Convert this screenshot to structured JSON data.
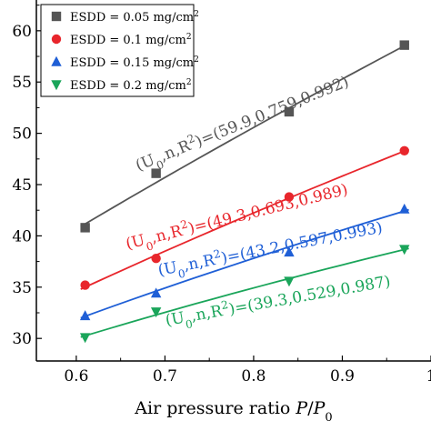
{
  "chart_data": {
    "type": "scatter",
    "title": "",
    "xlabel": "Air pressure ratio P/P0",
    "xlabel_parts": {
      "prefix": "Air pressure ratio ",
      "var1": "P",
      "slash": "/",
      "var2": "P",
      "sub": "0"
    },
    "ylabel": "",
    "xlim": [
      0.555,
      1.0
    ],
    "ylim": [
      27.8,
      63.0
    ],
    "x_ticks": [
      0.6,
      0.7,
      0.8,
      0.9,
      1.0
    ],
    "x_tick_labels": [
      "0.6",
      "0.7",
      "0.8",
      "0.9",
      "1"
    ],
    "y_ticks": [
      30,
      35,
      40,
      45,
      50,
      55,
      60
    ],
    "y_tick_labels": [
      "30",
      "35",
      "40",
      "45",
      "50",
      "55",
      "60"
    ],
    "grid": false,
    "legend_position": "top-left",
    "series": [
      {
        "legend": "ESDD = 0.05 mg/cm²",
        "legend_parts": {
          "text": "ESDD = 0.05 mg/cm",
          "sup": "2"
        },
        "marker": "square",
        "color": "#555555",
        "x": [
          0.61,
          0.69,
          0.84,
          0.97
        ],
        "y": [
          40.8,
          46.1,
          52.1,
          58.6
        ],
        "fit": {
          "U0": 59.9,
          "n": 0.759,
          "R2": 0.992
        },
        "annotation": {
          "prefix": "(U",
          "sub": "0",
          "mid": ",n,R",
          "sup": "2",
          "suffix": ")=(59.9,0.759,0.992)"
        }
      },
      {
        "legend": "ESDD = 0.1 mg/cm²",
        "legend_parts": {
          "text": "ESDD = 0.1 mg/cm",
          "sup": "2"
        },
        "marker": "circle",
        "color": "#e8262c",
        "x": [
          0.61,
          0.69,
          0.84,
          0.97
        ],
        "y": [
          35.2,
          37.8,
          43.8,
          48.3
        ],
        "fit": {
          "U0": 49.3,
          "n": 0.693,
          "R2": 0.989
        },
        "annotation": {
          "prefix": "(U",
          "sub": "0",
          "mid": ",n,R",
          "sup": "2",
          "suffix": ")=(49.3,0.693,0.989)"
        }
      },
      {
        "legend": "ESDD = 0.15 mg/cm²",
        "legend_parts": {
          "text": "ESDD = 0.15 mg/cm",
          "sup": "2"
        },
        "marker": "triangle-up",
        "color": "#1f5fd6",
        "x": [
          0.61,
          0.69,
          0.84,
          0.97
        ],
        "y": [
          32.2,
          34.4,
          38.4,
          42.6
        ],
        "fit": {
          "U0": 43.2,
          "n": 0.597,
          "R2": 0.993
        },
        "annotation": {
          "prefix": "(U",
          "sub": "0",
          "mid": ",n,R",
          "sup": "2",
          "suffix": ")=(43.2,0.597,0.993)"
        }
      },
      {
        "legend": "ESDD = 0.2 mg/cm²",
        "legend_parts": {
          "text": "ESDD = 0.2 mg/cm",
          "sup": "2"
        },
        "marker": "triangle-down",
        "color": "#1aa55a",
        "x": [
          0.61,
          0.69,
          0.84,
          0.97
        ],
        "y": [
          30.1,
          32.6,
          35.6,
          38.7
        ],
        "fit": {
          "U0": 39.3,
          "n": 0.529,
          "R2": 0.987
        },
        "annotation": {
          "prefix": "(U",
          "sub": "0",
          "mid": ",n,R",
          "sup": "2",
          "suffix": ")=(39.3,0.529,0.987)"
        }
      }
    ]
  }
}
